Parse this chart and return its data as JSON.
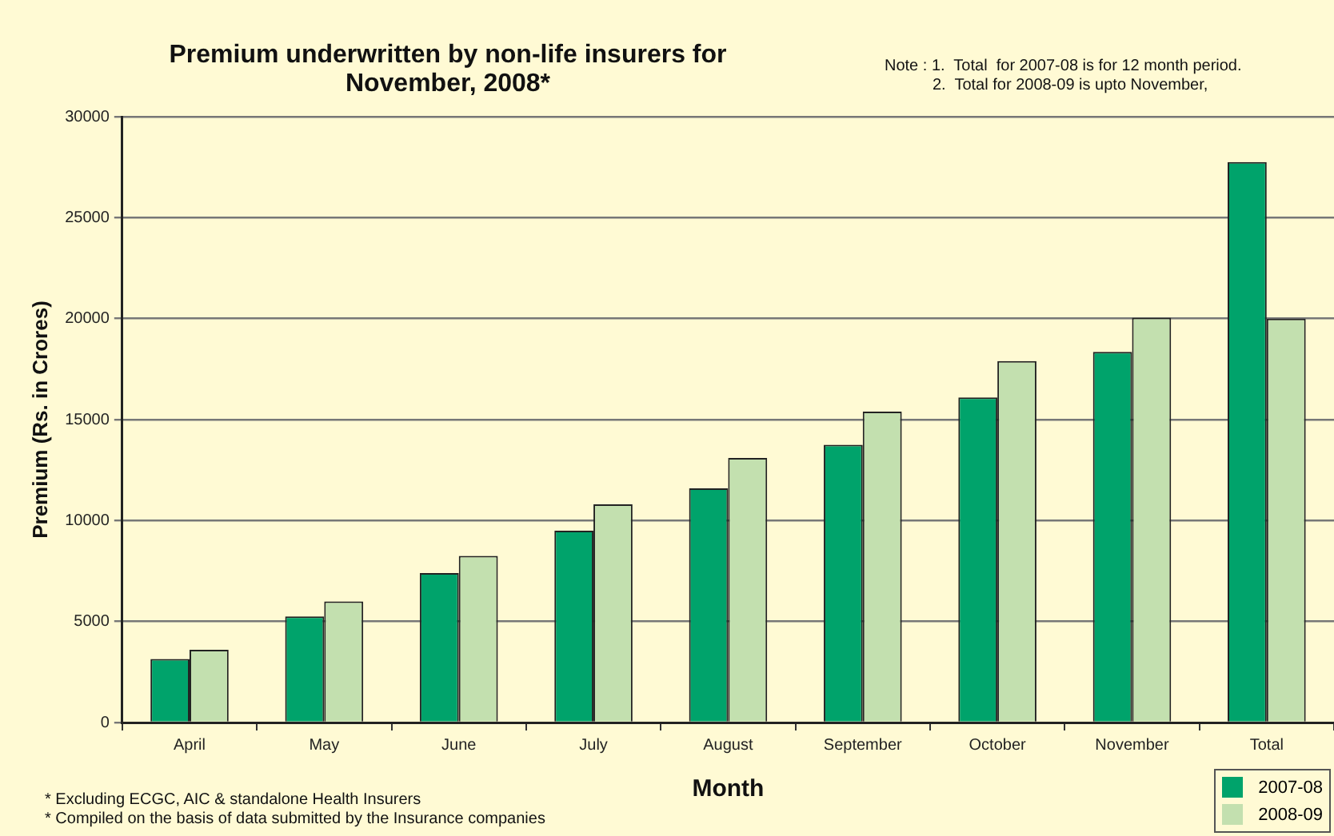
{
  "chart_data": {
    "type": "bar",
    "title": "Premium underwritten by non-life insurers for November, 2008*",
    "xlabel": "Month",
    "ylabel": "Premium (Rs. in Crores)",
    "categories": [
      "April",
      "May",
      "June",
      "July",
      "August",
      "September",
      "October",
      "November",
      "Total"
    ],
    "series": [
      {
        "name": "2007-08",
        "color": "#00a36b",
        "values": [
          3150,
          5250,
          7400,
          9500,
          11600,
          13750,
          16100,
          18350,
          27750
        ]
      },
      {
        "name": "2008-09",
        "color": "#c3e0af",
        "values": [
          3600,
          6000,
          8250,
          10800,
          13100,
          15400,
          17900,
          20050,
          20000
        ]
      }
    ],
    "ylim": [
      0,
      30000
    ],
    "yticks": [
      0,
      5000,
      10000,
      15000,
      20000,
      25000,
      30000
    ],
    "grid": "y",
    "legend": "bottom right",
    "annotations": [
      "Note : 1.  Total  for 2007-08 is for 12 month period.",
      "2.  Total for 2008-09 is upto November,",
      "* Excluding ECGC, AIC & standalone Health Insurers",
      "* Compiled on the basis of data submitted by the Insurance companies"
    ]
  }
}
